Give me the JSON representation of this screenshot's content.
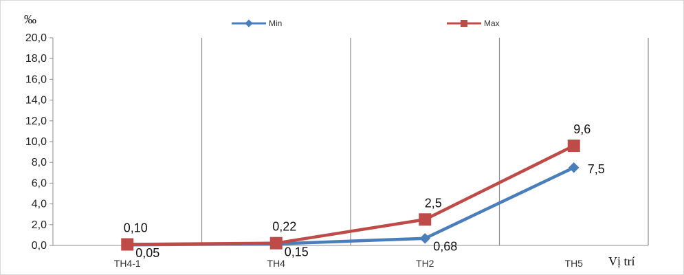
{
  "chart_data": {
    "type": "line",
    "categories": [
      "TH4-1",
      "TH4",
      "TH2",
      "TH5"
    ],
    "series": [
      {
        "name": "Min",
        "values": [
          0.05,
          0.15,
          0.68,
          7.5
        ],
        "labels": [
          "0,05",
          "0,15",
          "0,68",
          "7,5"
        ],
        "color": "#4a7ebb",
        "marker": "diamond"
      },
      {
        "name": "Max",
        "values": [
          0.1,
          0.22,
          2.5,
          9.6
        ],
        "labels": [
          "0,10",
          "0,22",
          "2,5",
          "9,6"
        ],
        "color": "#be4b48",
        "marker": "square"
      }
    ],
    "ylabel": "‰",
    "xlabel": "Vị trí",
    "ylim": [
      0,
      20
    ],
    "yticks": [
      "0,0",
      "2,0",
      "4,0",
      "6,0",
      "8,0",
      "10,0",
      "12,0",
      "14,0",
      "16,0",
      "18,0",
      "20,0"
    ],
    "grid": "vertical category separators",
    "legend_position": "top-center"
  }
}
